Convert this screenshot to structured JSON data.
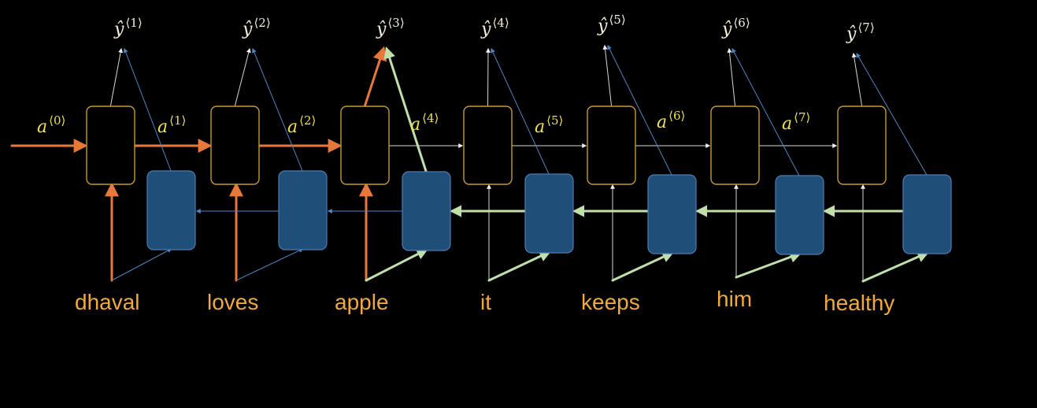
{
  "words": [
    "dhaval",
    "loves",
    "apple",
    "it",
    "keeps",
    "him",
    "healthy"
  ],
  "outputs": [
    {
      "base": "ŷ",
      "sup": "⟨1⟩"
    },
    {
      "base": "ŷ",
      "sup": "⟨2⟩"
    },
    {
      "base": "ŷ",
      "sup": "⟨3⟩"
    },
    {
      "base": "ŷ",
      "sup": "⟨4⟩"
    },
    {
      "base": "ŷ",
      "sup": "⟨5⟩"
    },
    {
      "base": "ŷ",
      "sup": "⟨6⟩"
    },
    {
      "base": "ŷ",
      "sup": "⟨7⟩"
    }
  ],
  "activations": [
    {
      "base": "a",
      "sup": "⟨0⟩"
    },
    {
      "base": "a",
      "sup": "⟨1⟩"
    },
    {
      "base": "a",
      "sup": "⟨2⟩"
    },
    {
      "base": "a",
      "sup": "⟨4⟩"
    },
    {
      "base": "a",
      "sup": "⟨5⟩"
    },
    {
      "base": "a",
      "sup": "⟨6⟩"
    },
    {
      "base": "a",
      "sup": "⟨7⟩"
    }
  ],
  "highlight_step": 3,
  "colors": {
    "background": "#000000",
    "highlight_orange": "#E8773A",
    "backward_green": "#BFE0A8",
    "forward_gray": "#D8D8D8",
    "thin_blue": "#4A86C5",
    "word_text": "#F2A93B",
    "activation_text": "#F2E24A",
    "output_text": "#F5F0D8",
    "forward_cell_border": "#C79A2B",
    "backward_cell_fill": "#1F4E79"
  }
}
